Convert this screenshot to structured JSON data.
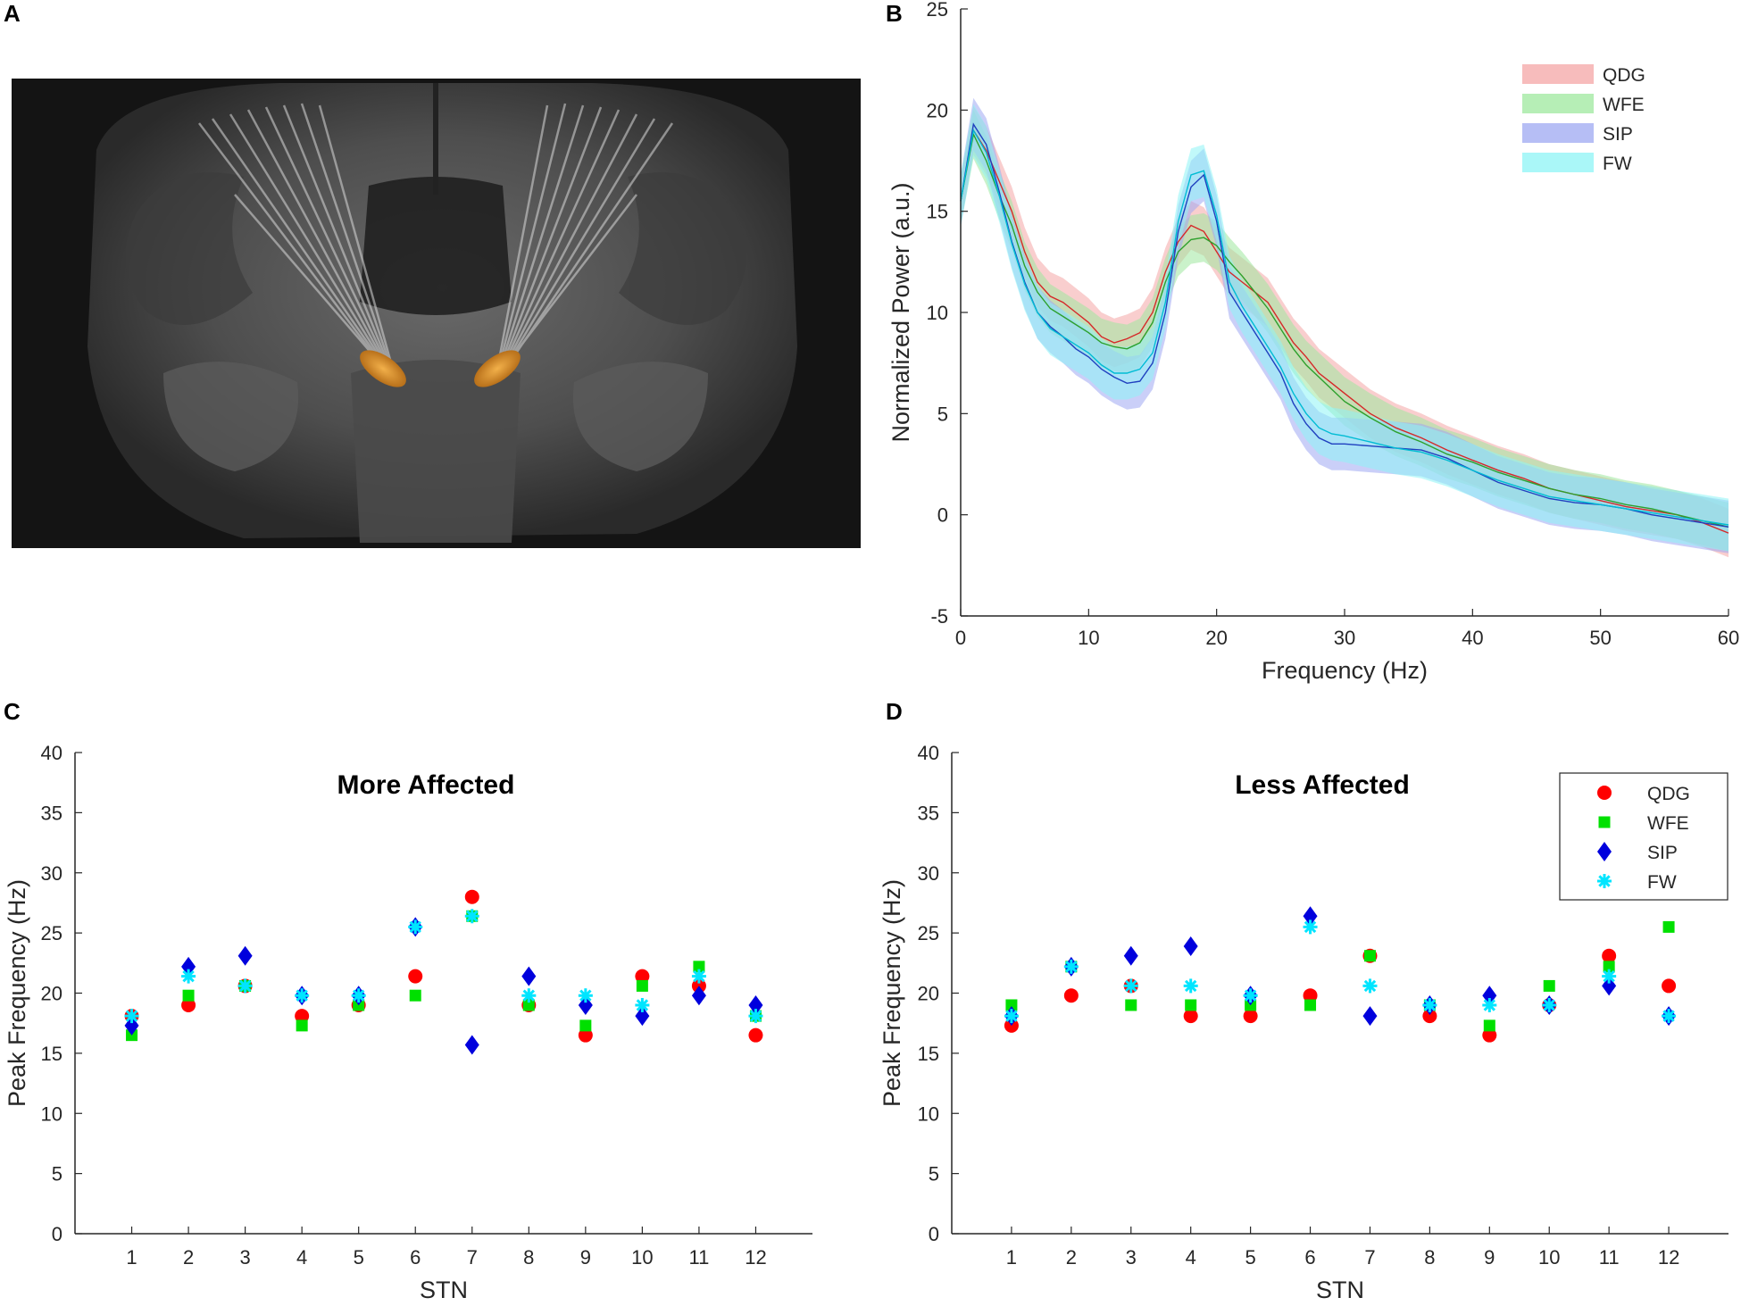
{
  "panels": {
    "A": {
      "letter": "A"
    },
    "B": {
      "letter": "B"
    },
    "C": {
      "letter": "C"
    },
    "D": {
      "letter": "D"
    }
  },
  "image_a": {
    "description_icon": "brain-mri-icon"
  },
  "chart_data": [
    {
      "panel": "B",
      "type": "line",
      "title": "",
      "xlabel": "Frequency (Hz)",
      "ylabel": "Normalized Power (a.u.)",
      "xlim": [
        0,
        60
      ],
      "ylim": [
        -5,
        25
      ],
      "xticks": [
        0,
        10,
        20,
        30,
        40,
        50,
        60
      ],
      "yticks": [
        -5,
        0,
        5,
        10,
        15,
        20,
        25
      ],
      "legend_position": "top-right",
      "series": [
        {
          "name": "QDG",
          "color": "#d62728",
          "band": "#f4a6a6",
          "x": [
            0,
            1,
            2,
            3,
            4,
            5,
            6,
            7,
            8,
            9,
            10,
            11,
            12,
            13,
            14,
            15,
            16,
            17,
            18,
            19,
            20,
            21,
            22,
            23,
            24,
            25,
            26,
            27,
            28,
            29,
            30,
            32,
            34,
            36,
            38,
            40,
            42,
            44,
            46,
            48,
            50,
            52,
            54,
            56,
            58,
            60
          ],
          "y": [
            15.5,
            19.0,
            18.0,
            16.5,
            15.0,
            13.0,
            11.5,
            10.8,
            10.5,
            10.0,
            9.5,
            8.8,
            8.5,
            8.7,
            9.0,
            10.0,
            12.0,
            13.5,
            14.3,
            14.0,
            13.0,
            12.0,
            11.5,
            11.0,
            10.5,
            9.5,
            8.5,
            7.8,
            7.0,
            6.5,
            6.0,
            5.0,
            4.3,
            3.8,
            3.2,
            2.7,
            2.2,
            1.8,
            1.3,
            1.0,
            0.7,
            0.4,
            0.2,
            0.0,
            -0.4,
            -0.9
          ],
          "spread": 1.2
        },
        {
          "name": "WFE",
          "color": "#2ca02c",
          "band": "#9ee89e",
          "x": [
            0,
            1,
            2,
            3,
            4,
            5,
            6,
            7,
            8,
            9,
            10,
            11,
            12,
            13,
            14,
            15,
            16,
            17,
            18,
            19,
            20,
            21,
            22,
            23,
            24,
            25,
            26,
            27,
            28,
            29,
            30,
            32,
            34,
            36,
            38,
            40,
            42,
            44,
            46,
            48,
            50,
            52,
            54,
            56,
            58,
            60
          ],
          "y": [
            15.5,
            18.8,
            17.5,
            15.8,
            14.3,
            12.3,
            11.0,
            10.2,
            9.8,
            9.4,
            9.0,
            8.5,
            8.3,
            8.2,
            8.5,
            9.5,
            11.5,
            13.0,
            13.6,
            13.7,
            13.3,
            12.5,
            11.8,
            11.0,
            10.2,
            9.2,
            8.2,
            7.4,
            6.8,
            6.2,
            5.6,
            4.8,
            4.1,
            3.6,
            3.0,
            2.6,
            2.1,
            1.7,
            1.3,
            1.0,
            0.8,
            0.5,
            0.3,
            0.0,
            -0.3,
            -0.6
          ],
          "spread": 1.2
        },
        {
          "name": "SIP",
          "color": "#1f3fbf",
          "band": "#9ea8f2",
          "x": [
            0,
            1,
            2,
            3,
            4,
            5,
            6,
            7,
            8,
            9,
            10,
            11,
            12,
            13,
            14,
            15,
            16,
            17,
            18,
            19,
            20,
            21,
            22,
            23,
            24,
            25,
            26,
            27,
            28,
            29,
            30,
            32,
            34,
            36,
            38,
            40,
            42,
            44,
            46,
            48,
            50,
            52,
            54,
            56,
            58,
            60
          ],
          "y": [
            15.5,
            19.3,
            18.3,
            16.0,
            13.5,
            11.5,
            10.0,
            9.3,
            8.8,
            8.2,
            7.8,
            7.2,
            6.8,
            6.5,
            6.6,
            7.5,
            10.0,
            14.0,
            16.2,
            16.8,
            14.5,
            11.0,
            10.0,
            9.0,
            8.0,
            7.0,
            5.5,
            4.5,
            3.8,
            3.5,
            3.5,
            3.4,
            3.3,
            3.2,
            2.8,
            2.2,
            1.6,
            1.2,
            0.8,
            0.6,
            0.5,
            0.3,
            0.0,
            -0.2,
            -0.4,
            -0.6
          ],
          "spread": 1.3
        },
        {
          "name": "FW",
          "color": "#00bcd4",
          "band": "#8ef4f6",
          "x": [
            0,
            1,
            2,
            3,
            4,
            5,
            6,
            7,
            8,
            9,
            10,
            11,
            12,
            13,
            14,
            15,
            16,
            17,
            18,
            19,
            20,
            21,
            22,
            23,
            24,
            25,
            26,
            27,
            28,
            29,
            30,
            32,
            34,
            36,
            38,
            40,
            42,
            44,
            46,
            48,
            50,
            52,
            54,
            56,
            58,
            60
          ],
          "y": [
            15.5,
            19.0,
            17.9,
            15.8,
            13.4,
            11.4,
            10.0,
            9.2,
            8.8,
            8.4,
            8.0,
            7.4,
            7.0,
            7.0,
            7.2,
            8.0,
            10.5,
            14.5,
            16.8,
            17.0,
            14.8,
            11.5,
            10.3,
            9.3,
            8.3,
            7.3,
            6.0,
            5.0,
            4.3,
            4.0,
            3.9,
            3.6,
            3.3,
            3.1,
            2.7,
            2.2,
            1.7,
            1.3,
            0.9,
            0.7,
            0.5,
            0.3,
            0.1,
            -0.1,
            -0.3,
            -0.5
          ],
          "spread": 1.3
        }
      ]
    },
    {
      "panel": "C",
      "type": "scatter",
      "title": "More Affected",
      "xlabel": "STN",
      "ylabel": "Peak Frequency (Hz)",
      "categories": [
        "1",
        "2",
        "3",
        "4",
        "5",
        "6",
        "7",
        "8",
        "9",
        "10",
        "11",
        "12"
      ],
      "ylim": [
        0,
        40
      ],
      "yticks": [
        0,
        5,
        10,
        15,
        20,
        25,
        30,
        35,
        40
      ],
      "series": [
        {
          "name": "QDG",
          "marker": "circle",
          "color": "#ff0000",
          "values": [
            18.1,
            19.0,
            20.6,
            18.1,
            19.0,
            21.4,
            28.0,
            19.0,
            16.5,
            21.4,
            20.6,
            16.5
          ]
        },
        {
          "name": "WFE",
          "marker": "square",
          "color": "#00e000",
          "values": [
            16.5,
            19.8,
            20.6,
            17.3,
            19.0,
            19.8,
            26.4,
            19.0,
            17.3,
            20.6,
            22.2,
            18.1
          ]
        },
        {
          "name": "SIP",
          "marker": "diamond",
          "color": "#0000dd",
          "values": [
            17.3,
            22.2,
            23.1,
            19.8,
            19.8,
            25.5,
            15.7,
            21.4,
            19.0,
            18.1,
            19.8,
            19.0
          ]
        },
        {
          "name": "FW",
          "marker": "asterisk",
          "color": "#00e5ff",
          "values": [
            18.1,
            21.4,
            20.6,
            19.8,
            19.8,
            25.5,
            26.4,
            19.8,
            19.8,
            19.0,
            21.4,
            18.1
          ]
        }
      ]
    },
    {
      "panel": "D",
      "type": "scatter",
      "title": "Less Affected",
      "xlabel": "STN",
      "ylabel": "Peak Frequency (Hz)",
      "categories": [
        "1",
        "2",
        "3",
        "4",
        "5",
        "6",
        "7",
        "8",
        "9",
        "10",
        "11",
        "12"
      ],
      "ylim": [
        0,
        40
      ],
      "yticks": [
        0,
        5,
        10,
        15,
        20,
        25,
        30,
        35,
        40
      ],
      "legend_position": "top-right",
      "series": [
        {
          "name": "QDG",
          "marker": "circle",
          "color": "#ff0000",
          "values": [
            17.3,
            19.8,
            20.6,
            18.1,
            18.1,
            19.8,
            23.1,
            18.1,
            16.5,
            19.0,
            23.1,
            20.6
          ]
        },
        {
          "name": "WFE",
          "marker": "square",
          "color": "#00e000",
          "values": [
            19.0,
            22.2,
            19.0,
            19.0,
            19.0,
            19.0,
            23.1,
            19.0,
            17.3,
            20.6,
            22.2,
            25.5
          ]
        },
        {
          "name": "SIP",
          "marker": "diamond",
          "color": "#0000dd",
          "values": [
            18.1,
            22.2,
            23.1,
            23.9,
            19.8,
            26.4,
            18.1,
            19.0,
            19.8,
            19.0,
            20.6,
            18.1
          ]
        },
        {
          "name": "FW",
          "marker": "asterisk",
          "color": "#00e5ff",
          "values": [
            18.1,
            22.2,
            20.6,
            20.6,
            19.8,
            25.5,
            20.6,
            19.0,
            19.0,
            19.0,
            21.4,
            18.1
          ]
        }
      ]
    }
  ]
}
